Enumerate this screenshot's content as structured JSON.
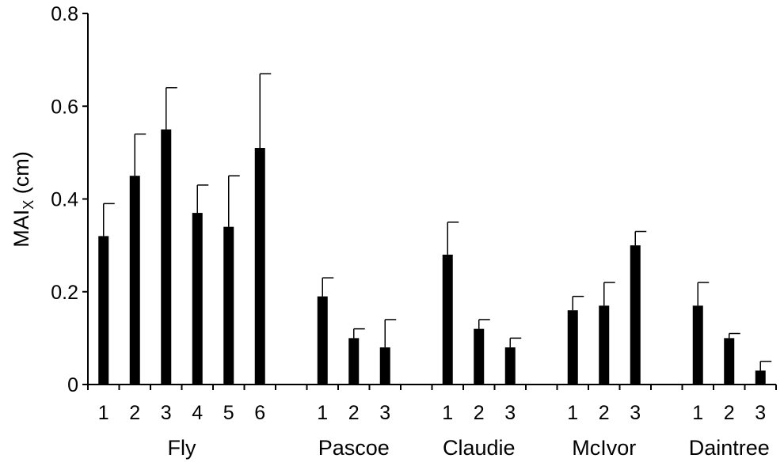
{
  "chart_data": {
    "type": "bar",
    "title": "",
    "xlabel": "",
    "ylabel": "MAI",
    "ylabel_subscript": "X",
    "ylabel_suffix": " (cm)",
    "ylim": [
      0,
      0.8
    ],
    "yticks": [
      "0",
      "0.2",
      "0.4",
      "0.6",
      "0.8"
    ],
    "grid": false,
    "colors": {
      "bar": "#000000",
      "axis": "#000000"
    },
    "groups": [
      {
        "name": "Fly",
        "categories": [
          "1",
          "2",
          "3",
          "4",
          "5",
          "6"
        ],
        "values": [
          0.32,
          0.45,
          0.55,
          0.37,
          0.34,
          0.51
        ],
        "errors": [
          0.07,
          0.09,
          0.09,
          0.06,
          0.11,
          0.16
        ]
      },
      {
        "name": "Pascoe",
        "categories": [
          "1",
          "2",
          "3"
        ],
        "values": [
          0.19,
          0.1,
          0.08
        ],
        "errors": [
          0.04,
          0.02,
          0.06
        ]
      },
      {
        "name": "Claudie",
        "categories": [
          "1",
          "2",
          "3"
        ],
        "values": [
          0.28,
          0.12,
          0.08
        ],
        "errors": [
          0.07,
          0.02,
          0.02
        ]
      },
      {
        "name": "McIvor",
        "categories": [
          "1",
          "2",
          "3"
        ],
        "values": [
          0.16,
          0.17,
          0.3
        ],
        "errors": [
          0.03,
          0.05,
          0.03
        ]
      },
      {
        "name": "Daintree",
        "categories": [
          "1",
          "2",
          "3"
        ],
        "values": [
          0.17,
          0.1,
          0.03
        ],
        "errors": [
          0.05,
          0.01,
          0.02
        ]
      }
    ]
  }
}
